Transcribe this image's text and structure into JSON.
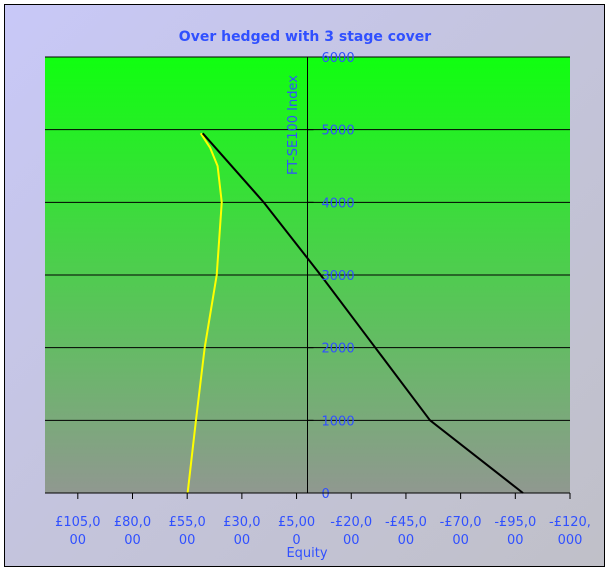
{
  "chart_data": {
    "type": "line",
    "title": "Over hedged with 3 stage cover",
    "xlabel": "Equity",
    "ylabel": "FT-SE100 Index",
    "xlim": [
      120000,
      -120000
    ],
    "ylim": [
      0,
      6000
    ],
    "x_reversed": true,
    "x_ticks": [
      105000,
      80000,
      55000,
      30000,
      5000,
      -20000,
      -45000,
      -70000,
      -95000,
      -120000
    ],
    "x_tick_labels": [
      [
        "£105,0",
        "00"
      ],
      [
        "£80,0",
        "00"
      ],
      [
        "£55,0",
        "00"
      ],
      [
        "£30,0",
        "00"
      ],
      [
        "£5,00",
        "0"
      ],
      [
        "-£20,0",
        "00"
      ],
      [
        "-£45,0",
        "00"
      ],
      [
        "-£70,0",
        "00"
      ],
      [
        "-£95,0",
        "00"
      ],
      [
        "-£120,",
        "000"
      ]
    ],
    "y_ticks": [
      0,
      1000,
      2000,
      3000,
      4000,
      5000,
      6000
    ],
    "y_tick_labels": [
      "0",
      "1000",
      "2000",
      "3000",
      "4000",
      "5000",
      "6000"
    ],
    "grid": "horizontal",
    "plot_background": {
      "top": "#10ff10",
      "bottom": "#909890"
    },
    "series": [
      {
        "color": "#ffff00",
        "points": [
          [
            48800,
            4950
          ],
          [
            44500,
            4750
          ],
          [
            41100,
            4500
          ],
          [
            39200,
            4000
          ],
          [
            41500,
            3000
          ],
          [
            47000,
            2000
          ],
          [
            51000,
            1000
          ],
          [
            54800,
            0
          ]
        ]
      },
      {
        "color": "#000000",
        "points": [
          [
            47900,
            4950
          ],
          [
            20000,
            4000
          ],
          [
            -6000,
            3000
          ],
          [
            -31000,
            2000
          ],
          [
            -56000,
            1000
          ],
          [
            -98500,
            0
          ]
        ]
      }
    ]
  }
}
